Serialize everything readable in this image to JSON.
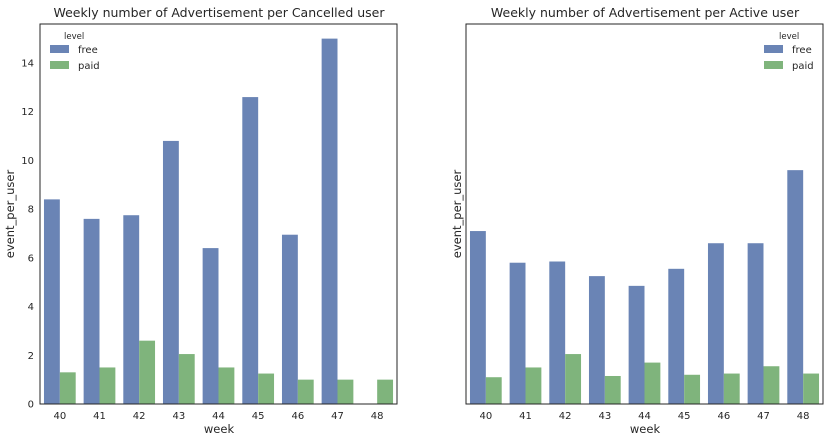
{
  "chart_data": [
    {
      "type": "bar",
      "title": "Weekly number of Advertisement per Cancelled user",
      "xlabel": "week",
      "ylabel": "event_per_user",
      "categories": [
        "40",
        "41",
        "42",
        "43",
        "44",
        "45",
        "46",
        "47",
        "48"
      ],
      "series": [
        {
          "name": "free",
          "color": "#6a84b5",
          "values": [
            8.4,
            7.6,
            7.75,
            10.8,
            6.4,
            12.6,
            6.95,
            15.0,
            null
          ]
        },
        {
          "name": "paid",
          "color": "#7fb47c",
          "values": [
            1.3,
            1.5,
            2.6,
            2.05,
            1.5,
            1.25,
            1.0,
            1.0,
            1.0
          ]
        }
      ],
      "ylim": [
        0,
        15.6
      ],
      "yticks": [
        0,
        2,
        4,
        6,
        8,
        10,
        12,
        14
      ],
      "show_yticks": true,
      "legend": {
        "title": "level",
        "position": "top-left"
      },
      "grid": false
    },
    {
      "type": "bar",
      "title": "Weekly number of Advertisement per Active user",
      "xlabel": "week",
      "ylabel": "event_per_user",
      "categories": [
        "40",
        "41",
        "42",
        "43",
        "44",
        "45",
        "46",
        "47",
        "48"
      ],
      "series": [
        {
          "name": "free",
          "color": "#6a84b5",
          "values": [
            7.1,
            5.8,
            5.85,
            5.25,
            4.85,
            5.55,
            6.6,
            6.6,
            9.6
          ]
        },
        {
          "name": "paid",
          "color": "#7fb47c",
          "values": [
            1.1,
            1.5,
            2.05,
            1.15,
            1.7,
            1.2,
            1.25,
            1.55,
            1.25
          ]
        }
      ],
      "ylim": [
        0,
        15.6
      ],
      "yticks": [],
      "show_yticks": false,
      "legend": {
        "title": "level",
        "position": "top-right"
      },
      "grid": false
    }
  ]
}
